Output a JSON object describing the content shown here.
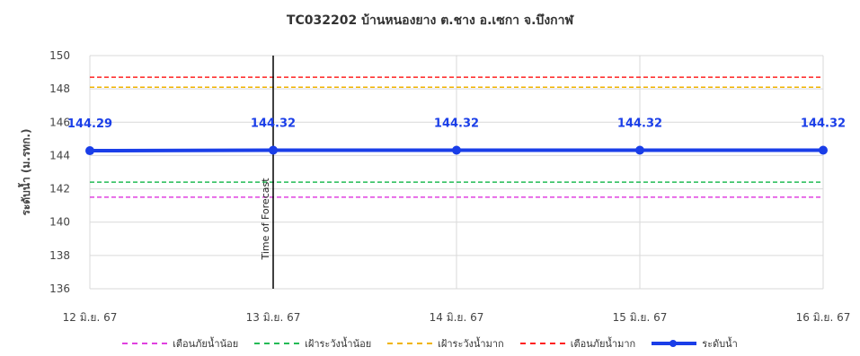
{
  "chart_data": {
    "type": "line",
    "title": "TC032202 บ้านหนองยาง ต.ชาง อ.เซกา จ.บึงกาฬ",
    "xlabel": "",
    "ylabel": "ระดับน้ำ (ม.รทก.)",
    "ylim": [
      136,
      150
    ],
    "yticks": [
      136,
      138,
      140,
      142,
      144,
      146,
      148,
      150
    ],
    "categories": [
      "12 มิ.ย. 67",
      "13 มิ.ย. 67",
      "14 มิ.ย. 67",
      "15 มิ.ย. 67",
      "16 มิ.ย. 67"
    ],
    "grid": true,
    "legend_position": "bottom",
    "reference_lines": [
      {
        "name": "เตือนภัยน้ำน้อย",
        "value": 141.5,
        "color": "#e040e0",
        "style": "dashed"
      },
      {
        "name": "เฝ้าระวังน้ำน้อย",
        "value": 142.4,
        "color": "#22bb55",
        "style": "dashed"
      },
      {
        "name": "เฝ้าระวังน้ำมาก",
        "value": 148.1,
        "color": "#f0b400",
        "style": "dashed"
      },
      {
        "name": "เตือนภัยน้ำมาก",
        "value": 148.7,
        "color": "#ff2020",
        "style": "dashed"
      }
    ],
    "series": [
      {
        "name": "ระดับน้ำ",
        "color": "#1a3ee8",
        "values": [
          144.29,
          144.32,
          144.32,
          144.32,
          144.32
        ],
        "labels": [
          "144.29",
          "144.32",
          "144.32",
          "144.32",
          "144.32"
        ]
      }
    ],
    "forecast_marker": {
      "category": "13 มิ.ย. 67",
      "label": "Time of Forecast",
      "color": "#000000"
    }
  }
}
